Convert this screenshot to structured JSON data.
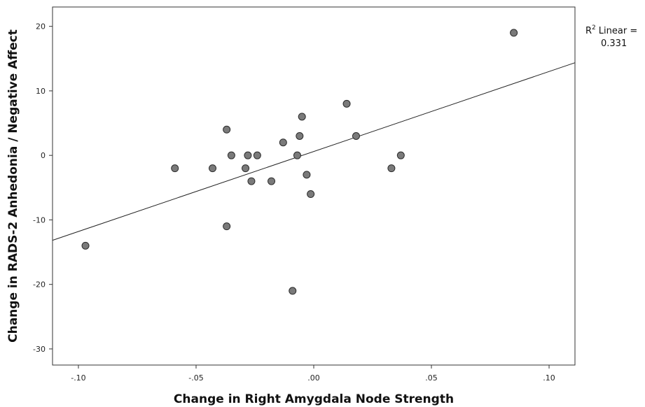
{
  "chart_data": {
    "type": "scatter",
    "xlabel": "Change in Right Amygdala Node Strength",
    "ylabel": "Change in RADS-2 Anhedonia / Negative Affect",
    "xlim": [
      -0.111,
      0.111
    ],
    "ylim": [
      -32.5,
      23
    ],
    "x_ticks": [
      -0.1,
      -0.05,
      0.0,
      0.05,
      0.1
    ],
    "x_tick_labels": [
      "-.10",
      "-.05",
      ".00",
      ".05",
      ".10"
    ],
    "y_ticks": [
      20,
      10,
      0,
      -10,
      -20,
      -30
    ],
    "y_tick_labels": [
      "20",
      "10",
      "0",
      "-10",
      "-20",
      "-30"
    ],
    "grid": false,
    "points": [
      {
        "x": -0.097,
        "y": -14
      },
      {
        "x": -0.059,
        "y": -2
      },
      {
        "x": -0.043,
        "y": -2
      },
      {
        "x": -0.037,
        "y": 4
      },
      {
        "x": -0.037,
        "y": -11
      },
      {
        "x": -0.035,
        "y": 0
      },
      {
        "x": -0.029,
        "y": -2
      },
      {
        "x": -0.028,
        "y": 0
      },
      {
        "x": -0.0265,
        "y": -4
      },
      {
        "x": -0.024,
        "y": 0
      },
      {
        "x": -0.018,
        "y": -4
      },
      {
        "x": -0.013,
        "y": 2
      },
      {
        "x": -0.009,
        "y": -21
      },
      {
        "x": -0.007,
        "y": 0
      },
      {
        "x": -0.006,
        "y": 3
      },
      {
        "x": -0.005,
        "y": 6
      },
      {
        "x": -0.003,
        "y": -3
      },
      {
        "x": -0.0013,
        "y": -6
      },
      {
        "x": 0.014,
        "y": 8
      },
      {
        "x": 0.018,
        "y": 3
      },
      {
        "x": 0.033,
        "y": -2
      },
      {
        "x": 0.037,
        "y": 0
      },
      {
        "x": 0.085,
        "y": 19
      }
    ],
    "fit_line": {
      "type": "linear",
      "slope": 124,
      "intercept": 0.6
    },
    "legend": {
      "label": "R",
      "superscript": "2",
      "suffix": "Linear =",
      "value": "0.331",
      "position": "right"
    },
    "colors": {
      "point_fill": "#7a7a7a",
      "point_stroke": "#2b2b2b",
      "line": "#222222",
      "frame": "#333333"
    }
  }
}
